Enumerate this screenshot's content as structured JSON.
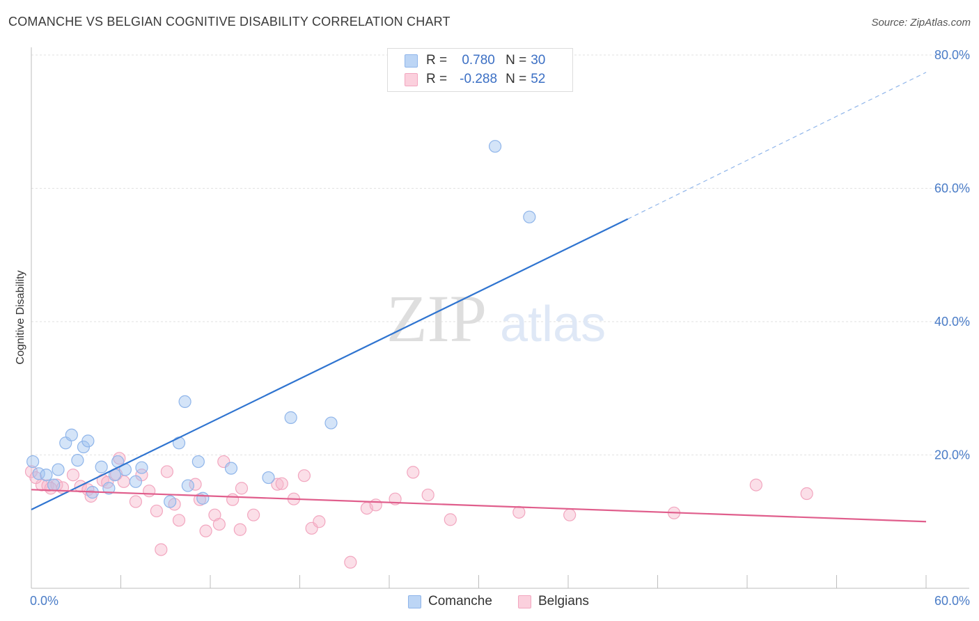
{
  "title": "COMANCHE VS BELGIAN COGNITIVE DISABILITY CORRELATION CHART",
  "source": "Source: ZipAtlas.com",
  "watermark": {
    "zip": "ZIP",
    "atlas": "atlas"
  },
  "legend": {
    "rows": [
      {
        "r_label": "R =",
        "r_value": "0.780",
        "n_label": "N =",
        "n_value": "30"
      },
      {
        "r_label": "R =",
        "r_value": "-0.288",
        "n_label": "N =",
        "n_value": "52"
      }
    ]
  },
  "chart_data": {
    "type": "scatter",
    "title": "COMANCHE VS BELGIAN COGNITIVE DISABILITY CORRELATION CHART",
    "xlabel": "",
    "ylabel": "Cognitive Disability",
    "xlim": [
      0,
      60
    ],
    "ylim": [
      0,
      80
    ],
    "x_tick_labels": [
      "0.0%",
      "60.0%"
    ],
    "y_tick_labels": [
      "20.0%",
      "40.0%",
      "60.0%",
      "80.0%"
    ],
    "y_ticks": [
      20,
      40,
      60,
      80
    ],
    "grid": true,
    "legend_position": "bottom",
    "series": [
      {
        "name": "Comanche",
        "color": "#9fc3f0",
        "line_color": "#2f74d0",
        "points": [
          [
            0.1,
            19.0
          ],
          [
            0.5,
            17.2
          ],
          [
            1.0,
            17.0
          ],
          [
            1.5,
            15.5
          ],
          [
            1.8,
            17.8
          ],
          [
            2.3,
            21.8
          ],
          [
            2.7,
            23.0
          ],
          [
            3.1,
            19.2
          ],
          [
            3.5,
            21.2
          ],
          [
            3.8,
            22.1
          ],
          [
            4.1,
            14.4
          ],
          [
            4.7,
            18.2
          ],
          [
            5.2,
            15.0
          ],
          [
            5.6,
            17.0
          ],
          [
            5.8,
            19.0
          ],
          [
            6.3,
            17.8
          ],
          [
            7.0,
            16.0
          ],
          [
            7.4,
            18.1
          ],
          [
            9.3,
            13.0
          ],
          [
            9.9,
            21.8
          ],
          [
            10.3,
            28.0
          ],
          [
            10.5,
            15.4
          ],
          [
            11.2,
            19.0
          ],
          [
            11.5,
            13.5
          ],
          [
            13.4,
            18.0
          ],
          [
            15.9,
            16.6
          ],
          [
            17.4,
            25.6
          ],
          [
            20.1,
            24.8
          ],
          [
            31.1,
            66.3
          ],
          [
            33.4,
            55.7
          ]
        ],
        "trend": {
          "x1": 0,
          "y1": 11.8,
          "x2": 40.0,
          "y2": 55.4,
          "dashed_to_x": 60.0,
          "dashed_to_y": 77.4
        }
      },
      {
        "name": "Belgians",
        "color": "#f7b9cc",
        "line_color": "#e05e8c",
        "points": [
          [
            0.0,
            17.5
          ],
          [
            0.7,
            15.5
          ],
          [
            1.1,
            15.4
          ],
          [
            1.7,
            15.5
          ],
          [
            2.1,
            15.1
          ],
          [
            2.8,
            17.0
          ],
          [
            3.3,
            15.3
          ],
          [
            3.8,
            14.8
          ],
          [
            4.0,
            13.8
          ],
          [
            4.8,
            16.2
          ],
          [
            5.1,
            15.9
          ],
          [
            5.7,
            17.1
          ],
          [
            5.9,
            19.5
          ],
          [
            6.2,
            16.0
          ],
          [
            7.0,
            13.0
          ],
          [
            7.4,
            17.0
          ],
          [
            7.9,
            14.6
          ],
          [
            8.4,
            11.6
          ],
          [
            8.7,
            5.8
          ],
          [
            9.1,
            17.5
          ],
          [
            9.6,
            12.6
          ],
          [
            9.9,
            10.2
          ],
          [
            11.0,
            15.6
          ],
          [
            11.3,
            13.3
          ],
          [
            11.7,
            8.6
          ],
          [
            12.3,
            11.0
          ],
          [
            12.6,
            9.6
          ],
          [
            12.9,
            19.0
          ],
          [
            13.5,
            13.3
          ],
          [
            14.0,
            8.8
          ],
          [
            14.1,
            15.0
          ],
          [
            14.9,
            11.0
          ],
          [
            16.5,
            15.6
          ],
          [
            16.8,
            15.7
          ],
          [
            17.6,
            13.4
          ],
          [
            18.3,
            16.9
          ],
          [
            18.8,
            9.0
          ],
          [
            19.3,
            10.0
          ],
          [
            21.4,
            3.9
          ],
          [
            22.5,
            12.0
          ],
          [
            23.1,
            12.5
          ],
          [
            24.4,
            13.4
          ],
          [
            25.6,
            17.4
          ],
          [
            26.6,
            14.0
          ],
          [
            28.1,
            10.3
          ],
          [
            32.7,
            11.4
          ],
          [
            36.1,
            11.0
          ],
          [
            43.1,
            11.3
          ],
          [
            48.6,
            15.5
          ],
          [
            52.0,
            14.2
          ],
          [
            0.3,
            16.6
          ],
          [
            1.3,
            15.0
          ]
        ],
        "trend": {
          "x1": 0,
          "y1": 14.8,
          "x2": 60.0,
          "y2": 10.0
        }
      }
    ]
  }
}
